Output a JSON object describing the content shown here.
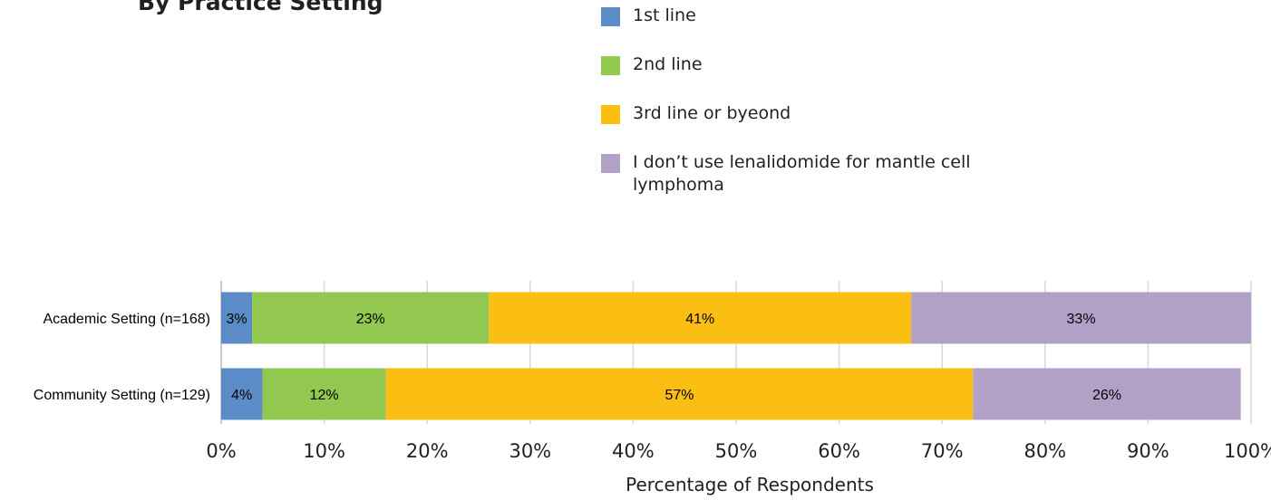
{
  "chart_data": {
    "type": "bar",
    "orientation": "horizontal",
    "stacked": true,
    "title": "By Practice Setting",
    "xlabel": "Percentage of Respondents",
    "ylabel": "",
    "xlim": [
      0,
      100
    ],
    "grid": true,
    "legend_position": "top",
    "categories": [
      "Academic Setting (n=168)",
      "Community Setting (n=129)"
    ],
    "x_ticks": [
      "0%",
      "10%",
      "20%",
      "30%",
      "40%",
      "50%",
      "60%",
      "70%",
      "80%",
      "90%",
      "100%"
    ],
    "series": [
      {
        "name": "1st line",
        "color": "#5b8cc8",
        "values": [
          3,
          4
        ],
        "display_values": [
          "3%",
          "4%"
        ]
      },
      {
        "name": "2nd line",
        "color": "#92c850",
        "values": [
          23,
          12
        ],
        "display_values": [
          "23%",
          "12%"
        ]
      },
      {
        "name": "3rd line or byeond",
        "color": "#fbbe13",
        "values": [
          41,
          57
        ],
        "display_values": [
          "41%",
          "57%"
        ]
      },
      {
        "name": "I don’t use lenalidomide for mantle cell lymphoma",
        "color": "#b2a1c7",
        "values": [
          33,
          26
        ],
        "display_values": [
          "33%",
          "26%"
        ]
      }
    ]
  }
}
